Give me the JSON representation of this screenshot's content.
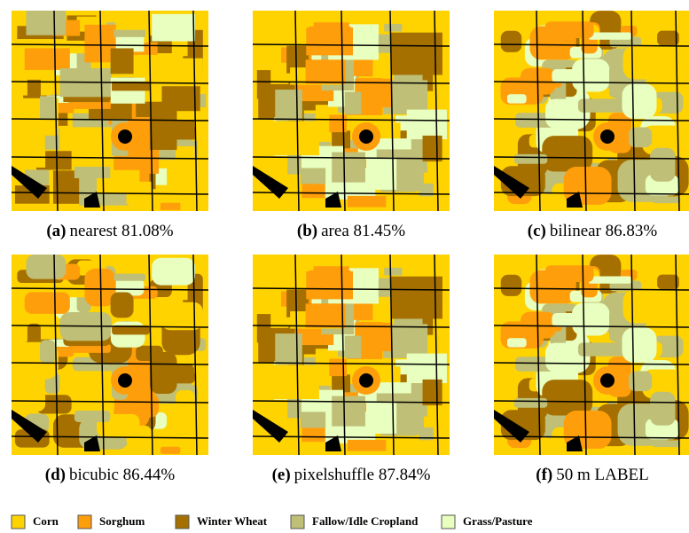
{
  "panels": [
    {
      "label": "(a)",
      "text": "nearest 81.08%"
    },
    {
      "label": "(b)",
      "text": "area 81.45%"
    },
    {
      "label": "(c)",
      "text": "bilinear 86.83%"
    },
    {
      "label": "(d)",
      "text": "bicubic 86.44%"
    },
    {
      "label": "(e)",
      "text": "pixelshuffle 87.84%"
    },
    {
      "label": "(f)",
      "text": "50 m LABEL"
    }
  ],
  "legend": [
    {
      "name": "Corn",
      "color": "#ffd300"
    },
    {
      "name": "Sorghum",
      "color": "#ff9e0b"
    },
    {
      "name": "Winter Wheat",
      "color": "#a57000"
    },
    {
      "name": "Fallow/Idle Cropland",
      "color": "#bfbf77"
    },
    {
      "name": "Grass/Pasture",
      "color": "#e8ffbf"
    }
  ]
}
